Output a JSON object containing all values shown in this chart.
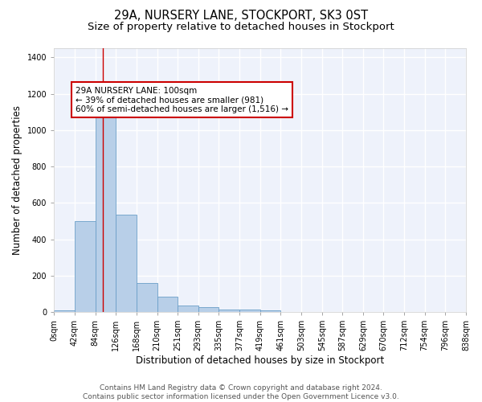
{
  "title": "29A, NURSERY LANE, STOCKPORT, SK3 0ST",
  "subtitle": "Size of property relative to detached houses in Stockport",
  "xlabel": "Distribution of detached houses by size in Stockport",
  "ylabel": "Number of detached properties",
  "bin_edges": [
    0,
    42,
    84,
    126,
    168,
    210,
    251,
    293,
    335,
    377,
    419,
    461,
    503,
    545,
    587,
    629,
    670,
    712,
    754,
    796,
    838
  ],
  "bin_labels": [
    "0sqm",
    "42sqm",
    "84sqm",
    "126sqm",
    "168sqm",
    "210sqm",
    "251sqm",
    "293sqm",
    "335sqm",
    "377sqm",
    "419sqm",
    "461sqm",
    "503sqm",
    "545sqm",
    "587sqm",
    "629sqm",
    "670sqm",
    "712sqm",
    "754sqm",
    "796sqm",
    "838sqm"
  ],
  "counts": [
    10,
    500,
    1155,
    535,
    160,
    82,
    35,
    28,
    15,
    15,
    10,
    0,
    0,
    0,
    0,
    0,
    0,
    0,
    0,
    0
  ],
  "bar_color": "#b8cfe8",
  "bar_edgecolor": "#6b9fc8",
  "vline_x": 100,
  "vline_color": "#cc0000",
  "annotation_text": "29A NURSERY LANE: 100sqm\n← 39% of detached houses are smaller (981)\n60% of semi-detached houses are larger (1,516) →",
  "annotation_box_color": "white",
  "annotation_box_edgecolor": "#cc0000",
  "ylim": [
    0,
    1450
  ],
  "yticks": [
    0,
    200,
    400,
    600,
    800,
    1000,
    1200,
    1400
  ],
  "background_color": "#eef2fb",
  "grid_color": "white",
  "footer_text": "Contains HM Land Registry data © Crown copyright and database right 2024.\nContains public sector information licensed under the Open Government Licence v3.0.",
  "title_fontsize": 10.5,
  "subtitle_fontsize": 9.5,
  "xlabel_fontsize": 8.5,
  "ylabel_fontsize": 8.5,
  "tick_fontsize": 7,
  "annotation_fontsize": 7.5,
  "footer_fontsize": 6.5
}
